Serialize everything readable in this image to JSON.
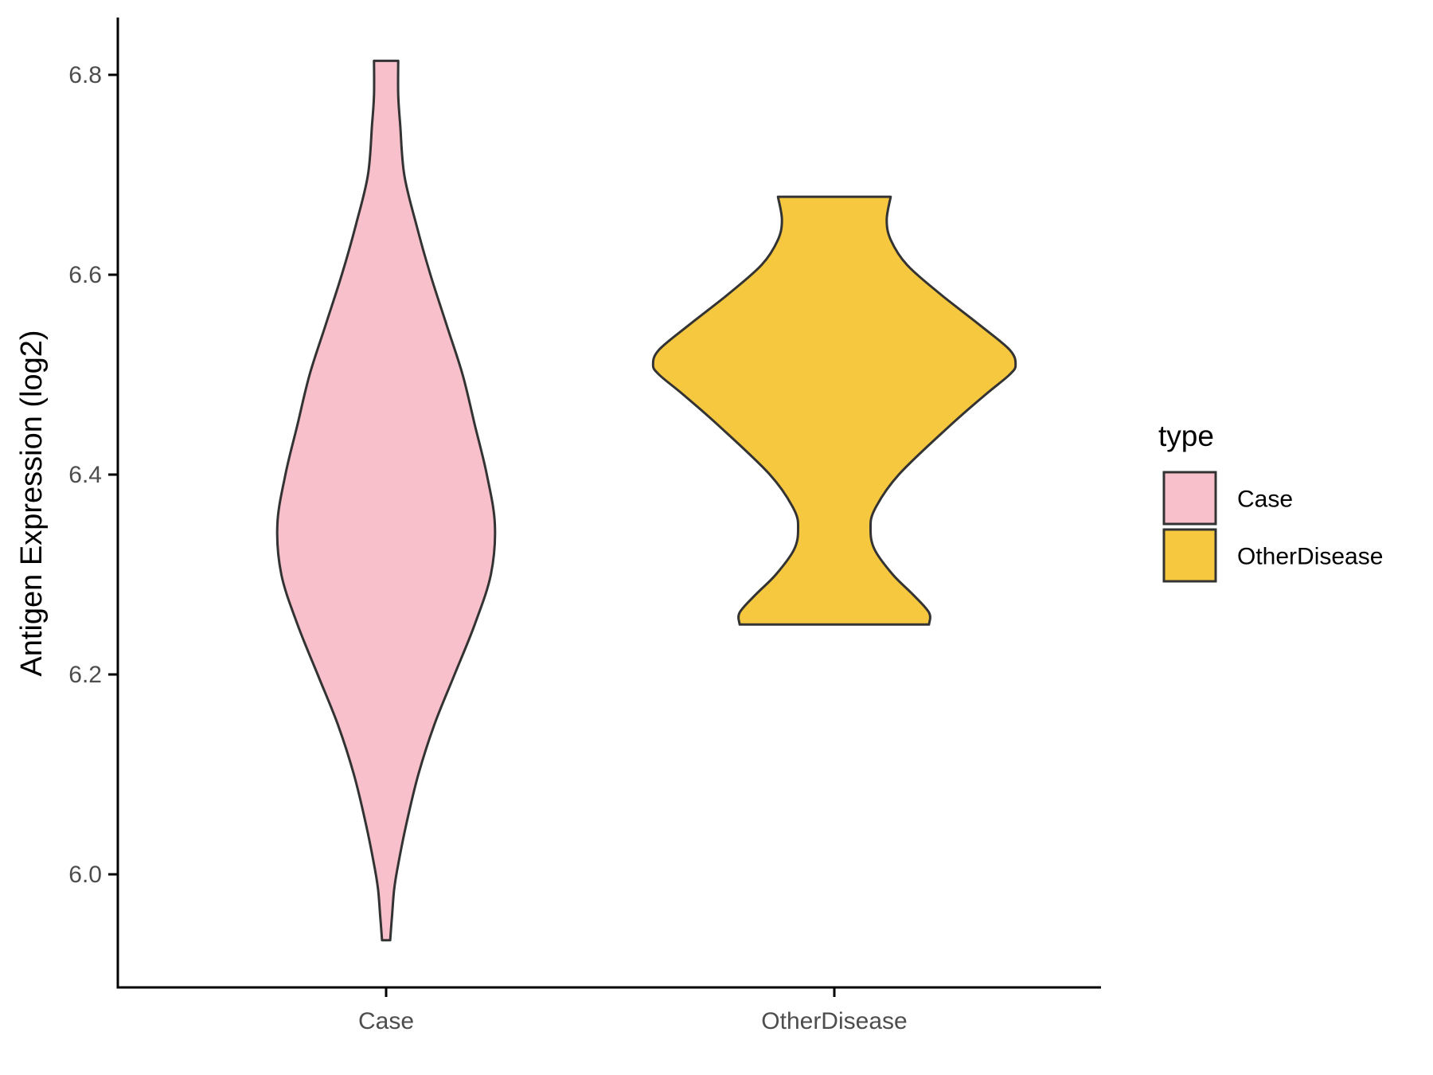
{
  "chart_data": {
    "type": "violin",
    "title": "",
    "xlabel": "",
    "ylabel": "Antigen Expression (log2)",
    "ylim": [
      5.9,
      6.86
    ],
    "y_ticks": [
      "6.0",
      "6.2",
      "6.4",
      "6.6",
      "6.8"
    ],
    "y_tick_values": [
      6.0,
      6.2,
      6.4,
      6.6,
      6.8
    ],
    "categories": [
      "Case",
      "OtherDisease"
    ],
    "grid": false,
    "legend": {
      "title": "type",
      "position": "right",
      "entries": [
        "Case",
        "OtherDisease"
      ]
    },
    "colors": {
      "Case": "#f7c0cb",
      "OtherDisease": "#f5c840",
      "outline": "#333333",
      "axis": "#000000"
    },
    "series": [
      {
        "name": "Case",
        "min": 5.934,
        "max": 6.814,
        "density_profile": [
          [
            5.934,
            0.02
          ],
          [
            5.96,
            0.03
          ],
          [
            5.985,
            0.04
          ],
          [
            6.01,
            0.06
          ],
          [
            6.05,
            0.1
          ],
          [
            6.1,
            0.16
          ],
          [
            6.15,
            0.24
          ],
          [
            6.2,
            0.34
          ],
          [
            6.25,
            0.44
          ],
          [
            6.3,
            0.52
          ],
          [
            6.35,
            0.54
          ],
          [
            6.4,
            0.5
          ],
          [
            6.45,
            0.44
          ],
          [
            6.5,
            0.38
          ],
          [
            6.55,
            0.3
          ],
          [
            6.6,
            0.22
          ],
          [
            6.65,
            0.15
          ],
          [
            6.7,
            0.09
          ],
          [
            6.75,
            0.07
          ],
          [
            6.78,
            0.06
          ],
          [
            6.814,
            0.06
          ]
        ]
      },
      {
        "name": "OtherDisease",
        "min": 6.25,
        "max": 6.678,
        "density_profile": [
          [
            6.25,
            0.47
          ],
          [
            6.262,
            0.47
          ],
          [
            6.28,
            0.39
          ],
          [
            6.3,
            0.29
          ],
          [
            6.325,
            0.2
          ],
          [
            6.345,
            0.18
          ],
          [
            6.365,
            0.2
          ],
          [
            6.4,
            0.32
          ],
          [
            6.45,
            0.58
          ],
          [
            6.48,
            0.75
          ],
          [
            6.5,
            0.87
          ],
          [
            6.51,
            0.9
          ],
          [
            6.525,
            0.87
          ],
          [
            6.55,
            0.72
          ],
          [
            6.58,
            0.53
          ],
          [
            6.61,
            0.36
          ],
          [
            6.635,
            0.28
          ],
          [
            6.655,
            0.26
          ],
          [
            6.678,
            0.28
          ]
        ]
      }
    ]
  }
}
